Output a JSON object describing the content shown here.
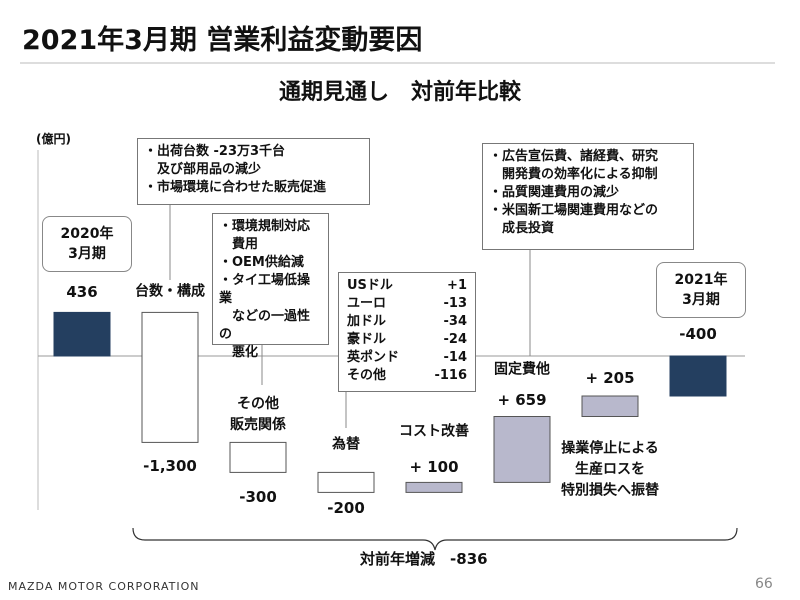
{
  "header": {
    "title": "2021年3月期 営業利益変動要因",
    "subtitle": "通期見通し　対前年比較"
  },
  "chart_data": {
    "type": "waterfall",
    "unit_label": "(億円)",
    "categories": [
      "2020年\n3月期",
      "台数・構成",
      "その他\n販売関係",
      "為替",
      "コスト改善",
      "固定費他",
      "操業停止による\n生産ロスを\n特別損失へ振替",
      "2021年\n3月期"
    ],
    "values": [
      436,
      -1300,
      -300,
      -200,
      100,
      659,
      205,
      -400
    ],
    "value_labels": [
      "436",
      "-1,300",
      "-300",
      "-200",
      "+ 100",
      "+ 659",
      "+ 205",
      "-400"
    ],
    "total_color": "#243f60",
    "increase_color": "#b8b8cc",
    "decrease_color": "#ffffff",
    "total_change": {
      "label": "対前年増減",
      "value": -836,
      "value_label": "-836"
    }
  },
  "notes": {
    "volume": [
      "・出荷台数 -23万3千台\n　及び部用品の減少",
      "・市場環境に合わせた販売促進"
    ],
    "other_sales": [
      "・環境規制対応\n　費用",
      "・OEM供給減",
      "・タイ工場低操業\n　などの一過性の\n　悪化"
    ],
    "fx": [
      [
        "USドル",
        "+1"
      ],
      [
        "ユーロ",
        "-13"
      ],
      [
        "加ドル",
        "-34"
      ],
      [
        "豪ドル",
        "-24"
      ],
      [
        "英ポンド",
        "-14"
      ],
      [
        "その他",
        "-116"
      ]
    ],
    "fixed_cost": [
      "・広告宣伝費、諸経費、研究\n　開発費の効率化による抑制",
      "・品質関連費用の減少",
      "・米国新工場関連費用などの\n　成長投資"
    ]
  },
  "footer": {
    "company": "MAZDA MOTOR CORPORATION",
    "page": "66"
  }
}
